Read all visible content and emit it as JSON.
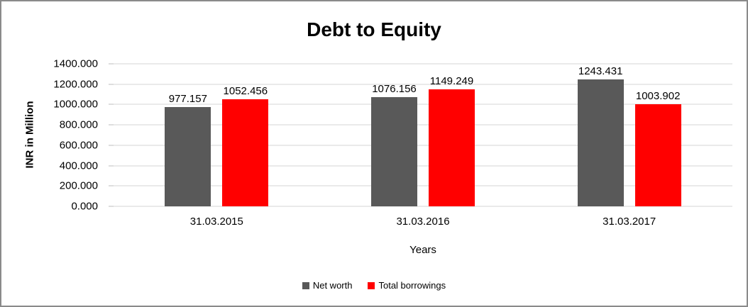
{
  "chart_data": {
    "type": "bar",
    "title": "Debt to Equity",
    "xlabel": "Years",
    "ylabel": "INR in Million",
    "categories": [
      "31.03.2015",
      "31.03.2016",
      "31.03.2017"
    ],
    "series": [
      {
        "name": "Net worth",
        "color": "#595959",
        "values": [
          977.157,
          1076.156,
          1243.431
        ]
      },
      {
        "name": "Total borrowings",
        "color": "#ff0000",
        "values": [
          1052.456,
          1149.249,
          1003.902
        ]
      }
    ],
    "ylim": [
      0,
      1400
    ],
    "ytick_step": 200,
    "tick_decimals": 3,
    "value_label_decimals": 3,
    "grid": true,
    "legend_position": "bottom",
    "colors": {
      "grid": "#d6d6d6",
      "axis": "#bdbdbd",
      "text": "#000000"
    }
  }
}
